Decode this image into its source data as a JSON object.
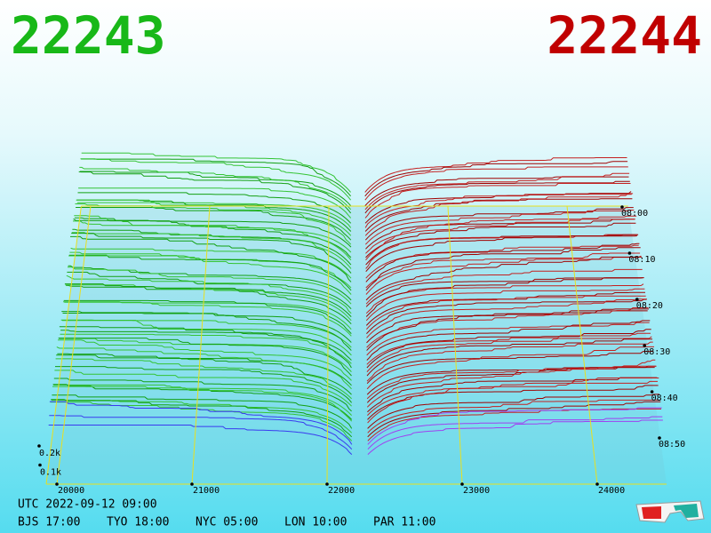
{
  "header": {
    "bid": 22243,
    "ask": 22244
  },
  "chart_data": {
    "type": "depth3d",
    "xticks": [
      20000,
      21000,
      22000,
      23000,
      24000
    ],
    "yticks": [
      {
        "value": 100,
        "label": "0.1k"
      },
      {
        "value": 200,
        "label": "0.2k"
      }
    ],
    "times": [
      "08:00",
      "08:10",
      "08:20",
      "08:30",
      "08:40",
      "08:50"
    ]
  },
  "footer": {
    "utc": "UTC 2022-09-12 09:00",
    "zones": [
      "BJS 17:00",
      "TYO 18:00",
      "NYC 05:00",
      "LON 10:00",
      "PAR 11:00"
    ]
  }
}
